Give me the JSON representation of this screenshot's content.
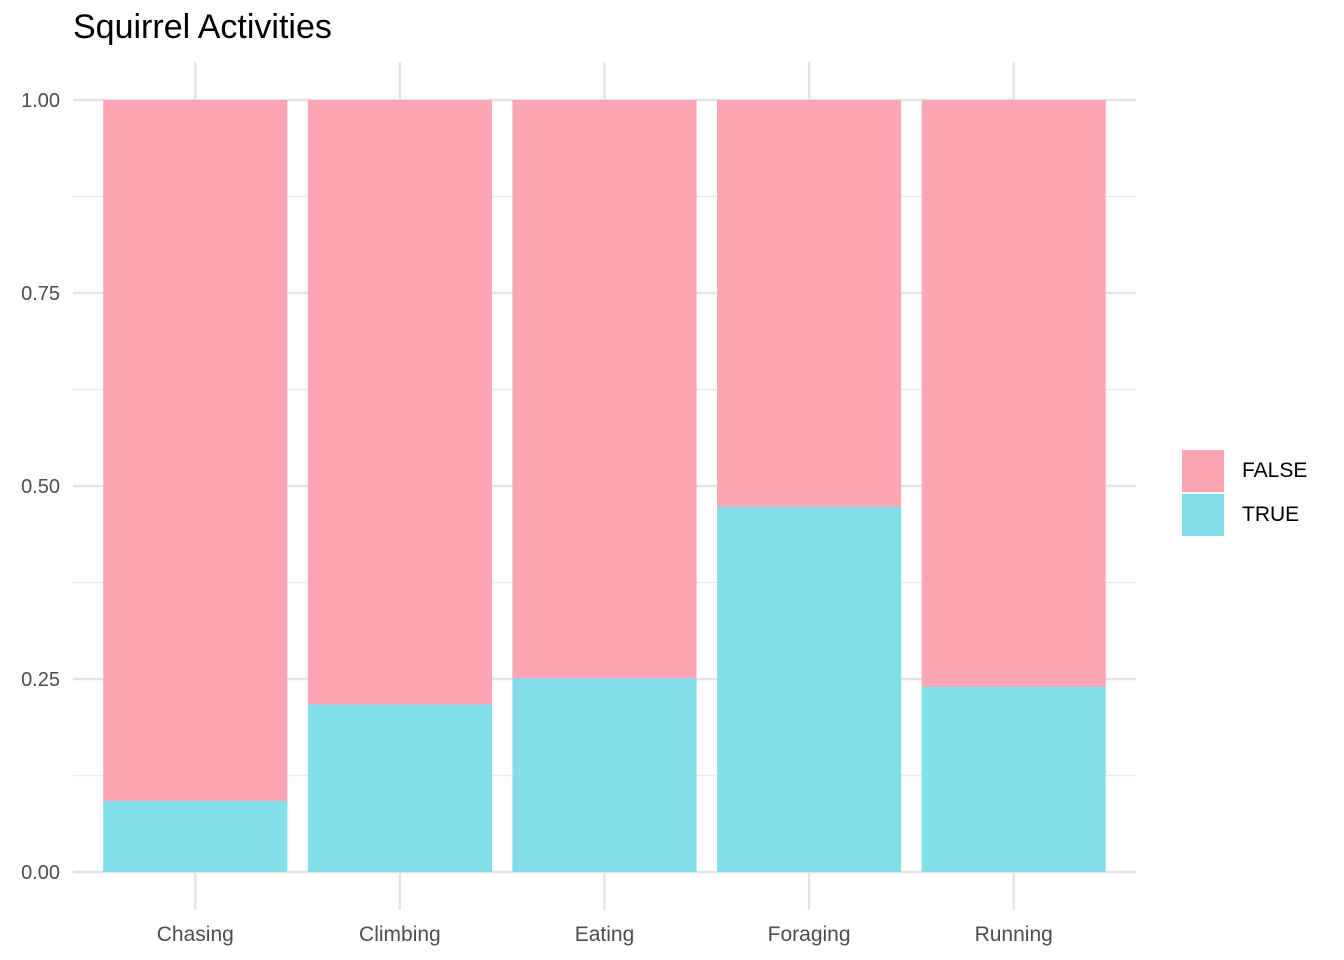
{
  "chart_data": {
    "type": "bar",
    "stacked": true,
    "position": "fill",
    "title": "Squirrel Activities",
    "xlabel": "",
    "ylabel": "",
    "categories": [
      "Chasing",
      "Climbing",
      "Eating",
      "Foraging",
      "Running"
    ],
    "series": [
      {
        "name": "FALSE",
        "color": "#FCA5B5",
        "values": [
          0.908,
          0.783,
          0.749,
          0.527,
          0.76
        ]
      },
      {
        "name": "TRUE",
        "color": "#80DFE8",
        "values": [
          0.092,
          0.217,
          0.251,
          0.473,
          0.24
        ]
      }
    ],
    "ylim": [
      0,
      1
    ],
    "yticks": [
      "0.00",
      "0.25",
      "0.50",
      "0.75",
      "1.00"
    ],
    "grid": true,
    "legend_position": "right"
  }
}
